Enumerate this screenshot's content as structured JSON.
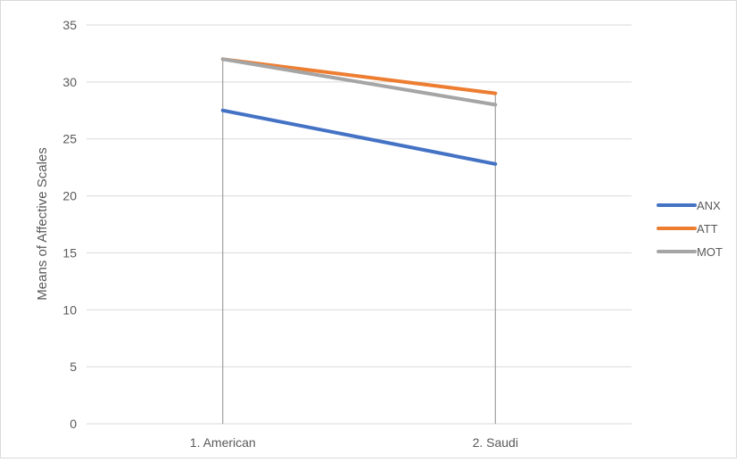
{
  "chart_data": {
    "type": "line",
    "title": "",
    "xlabel": "",
    "ylabel": "Means of Affective Scales",
    "categories": [
      "1. American",
      "2. Saudi"
    ],
    "ylim": [
      0,
      35
    ],
    "yticks": [
      0,
      5,
      10,
      15,
      20,
      25,
      30,
      35
    ],
    "grid": true,
    "drop_lines": true,
    "legend_position": "right",
    "series": [
      {
        "name": "ANX",
        "values": [
          27.5,
          22.8
        ],
        "color": "#4472C4"
      },
      {
        "name": "ATT",
        "values": [
          32.0,
          29.0
        ],
        "color": "#ED7D31"
      },
      {
        "name": "MOT",
        "values": [
          32.0,
          28.0
        ],
        "color": "#A5A5A5"
      }
    ],
    "gridline_color": "#d9d9d9",
    "dropline_color": "#8c8c8c"
  }
}
